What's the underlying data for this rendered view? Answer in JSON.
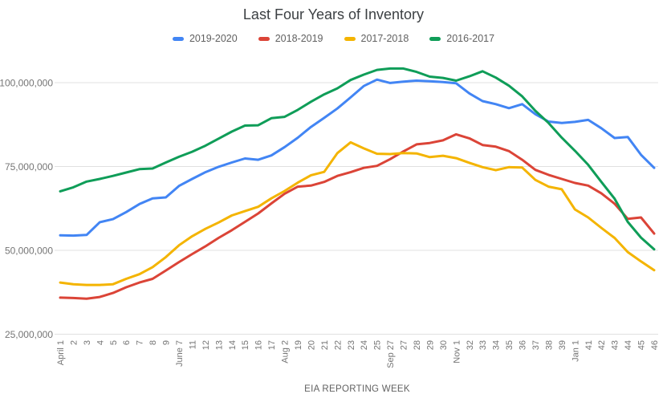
{
  "title": "Last Four Years of Inventory",
  "colors": {
    "series_blue": "#4285f4",
    "series_red": "#db4437",
    "series_yellow": "#f4b400",
    "series_green": "#0f9d58",
    "gridline": "#e0e0e0",
    "axis_text": "#757575",
    "axis_title_text": "#616161",
    "title_text": "#3c4043"
  },
  "chart_data": {
    "type": "line",
    "title": "Last Four Years of Inventory",
    "xlabel": "EIA REPORTING WEEK",
    "ylabel": "",
    "grid": true,
    "legend_position": "top",
    "ylim": [
      25000000,
      110000000
    ],
    "ytick_values": [
      25000000,
      50000000,
      75000000,
      100000000
    ],
    "ytick_labels": [
      "25,000,000",
      "50,000,000",
      "75,000,000",
      "100,000,000"
    ],
    "categories": [
      "April 1",
      "2",
      "3",
      "4",
      "5",
      "6",
      "7",
      "8",
      "9",
      "June 7",
      "11",
      "12",
      "13",
      "14",
      "15",
      "16",
      "17",
      "Aug 2",
      "19",
      "20",
      "21",
      "22",
      "23",
      "24",
      "25",
      "Sep 27",
      "27",
      "28",
      "29",
      "30",
      "Nov 1",
      "32",
      "33",
      "34",
      "35",
      "36",
      "37",
      "38",
      "39",
      "Jan 1",
      "41",
      "42",
      "43",
      "44",
      "45",
      "46"
    ],
    "series": [
      {
        "name": "2019-2020",
        "color": "#4285f4",
        "values": [
          54500000,
          54400000,
          54600000,
          58400000,
          59300000,
          61400000,
          63800000,
          65500000,
          65800000,
          69200000,
          71300000,
          73300000,
          74900000,
          76200000,
          77400000,
          77000000,
          78300000,
          80800000,
          83600000,
          86800000,
          89500000,
          92300000,
          95600000,
          99000000,
          100900000,
          99900000,
          100300000,
          100600000,
          100400000,
          100200000,
          99800000,
          96800000,
          94500000,
          93600000,
          92400000,
          93600000,
          90600000,
          88400000,
          88000000,
          88300000,
          88900000,
          86400000,
          83500000,
          83800000,
          78500000,
          74600000
        ]
      },
      {
        "name": "2018-2019",
        "color": "#db4437",
        "values": [
          35900000,
          35800000,
          35600000,
          36100000,
          37300000,
          39000000,
          40400000,
          41500000,
          44000000,
          46500000,
          48900000,
          51200000,
          53700000,
          56000000,
          58500000,
          61000000,
          64000000,
          66900000,
          69000000,
          69300000,
          70400000,
          72200000,
          73300000,
          74600000,
          75200000,
          77200000,
          79500000,
          81600000,
          82000000,
          82800000,
          84600000,
          83400000,
          81400000,
          80900000,
          79600000,
          77000000,
          74000000,
          72500000,
          71300000,
          70100000,
          69300000,
          67000000,
          63900000,
          59400000,
          59800000,
          55000000
        ]
      },
      {
        "name": "2017-2018",
        "color": "#f4b400",
        "values": [
          40400000,
          39900000,
          39700000,
          39700000,
          39900000,
          41500000,
          42900000,
          45000000,
          48000000,
          51500000,
          54200000,
          56400000,
          58300000,
          60400000,
          61700000,
          63000000,
          65500000,
          67700000,
          70200000,
          72400000,
          73400000,
          79000000,
          82200000,
          80400000,
          78800000,
          78700000,
          79000000,
          78900000,
          77800000,
          78200000,
          77500000,
          76100000,
          74800000,
          73900000,
          74800000,
          74700000,
          71000000,
          69000000,
          68200000,
          62200000,
          59800000,
          56700000,
          53700000,
          49500000,
          46700000,
          44100000
        ]
      },
      {
        "name": "2016-2017",
        "color": "#0f9d58",
        "values": [
          67600000,
          68800000,
          70500000,
          71300000,
          72200000,
          73200000,
          74200000,
          74400000,
          76200000,
          77900000,
          79400000,
          81200000,
          83300000,
          85400000,
          87200000,
          87300000,
          89400000,
          89800000,
          91900000,
          94300000,
          96500000,
          98300000,
          100800000,
          102400000,
          103800000,
          104200000,
          104200000,
          103200000,
          101800000,
          101400000,
          100600000,
          101900000,
          103400000,
          101500000,
          99100000,
          95900000,
          91600000,
          88000000,
          83600000,
          79700000,
          75500000,
          70400000,
          65400000,
          58500000,
          53800000,
          50300000
        ]
      }
    ]
  }
}
